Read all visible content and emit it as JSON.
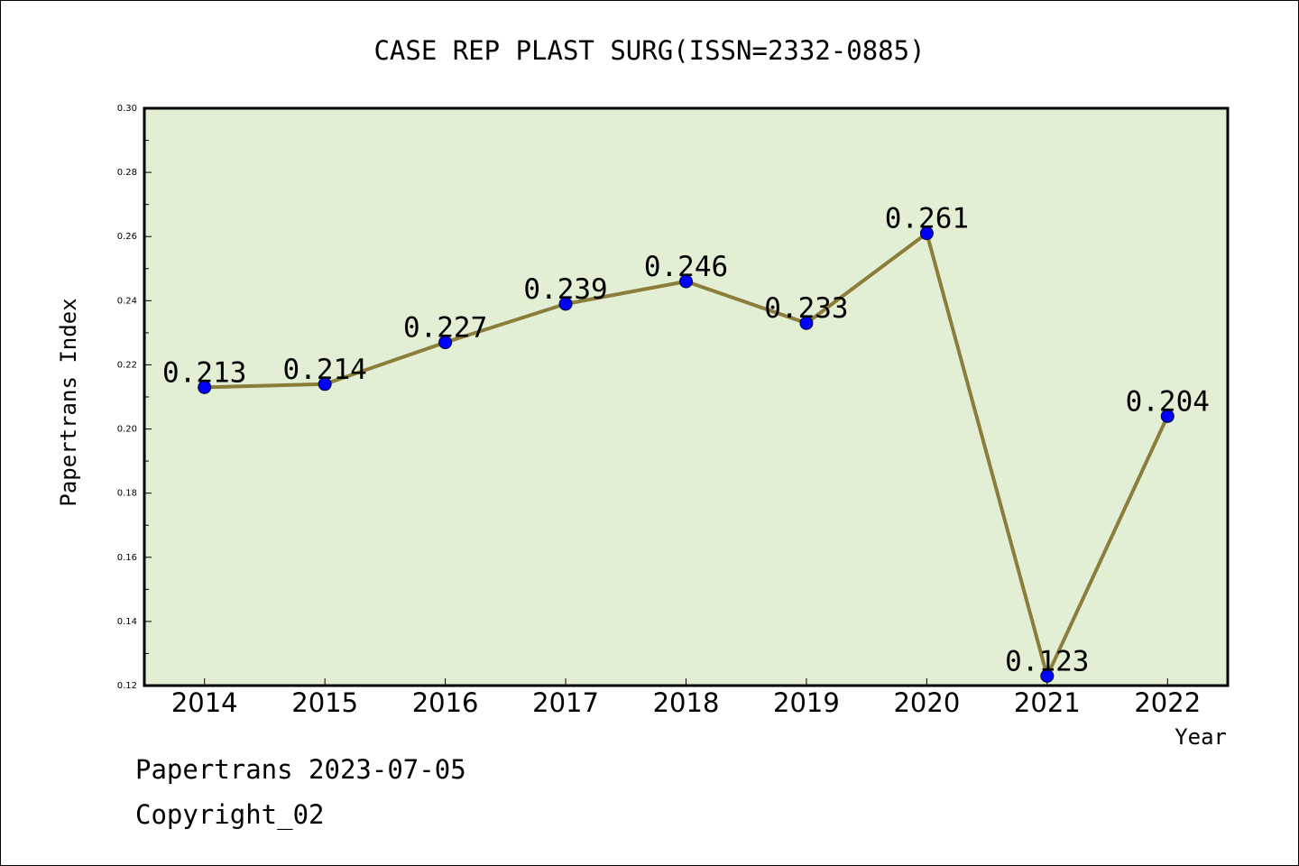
{
  "chart_data": {
    "type": "line",
    "title": "CASE REP PLAST SURG(ISSN=2332-0885)",
    "xlabel": "Year",
    "ylabel": "Papertrans Index",
    "x": [
      "2014",
      "2015",
      "2016",
      "2017",
      "2018",
      "2019",
      "2020",
      "2021",
      "2022"
    ],
    "series": [
      {
        "values": [
          0.213,
          0.214,
          0.227,
          0.239,
          0.246,
          0.233,
          0.261,
          0.123,
          0.204
        ],
        "labels": [
          "0.213",
          "0.214",
          "0.227",
          "0.239",
          "0.246",
          "0.233",
          "0.261",
          "0.123",
          "0.204"
        ]
      }
    ],
    "ylim": [
      0.12,
      0.3
    ],
    "yticks": [
      "0.12",
      "0.14",
      "0.16",
      "0.18",
      "0.20",
      "0.22",
      "0.24",
      "0.26",
      "0.28",
      "0.30"
    ],
    "grid": false,
    "colors": {
      "plot_background": "#e2efd4",
      "line": "#8b7d3a",
      "marker": "#0000ff"
    }
  },
  "footer": {
    "line1": "Papertrans 2023-07-05",
    "line2": "Copyright_02"
  }
}
